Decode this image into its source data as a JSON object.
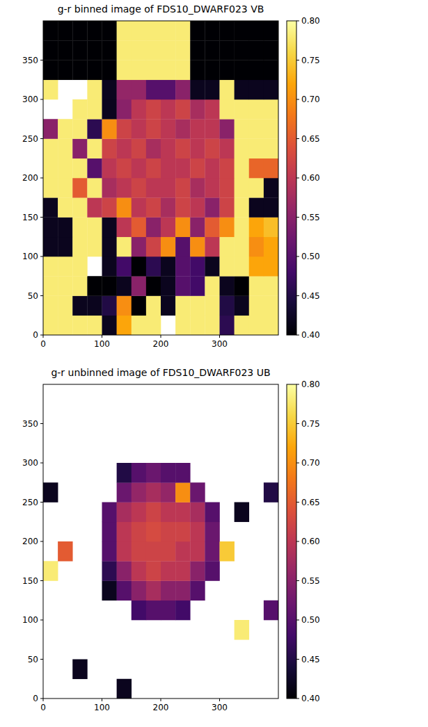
{
  "chart_data": [
    {
      "type": "heatmap",
      "title": "g-r binned image of FDS10_DWARF023 VB",
      "xlim": [
        0,
        400
      ],
      "ylim": [
        0,
        400
      ],
      "xticks": [
        0,
        100,
        200,
        300
      ],
      "yticks": [
        0,
        50,
        100,
        150,
        200,
        250,
        300,
        350
      ],
      "cells": [
        [
          0.78,
          0.78,
          0.78,
          0.78,
          0.42,
          0.72,
          0.78,
          0.78,
          null,
          0.78,
          0.78,
          0.78,
          0.46,
          0.78,
          0.78,
          0.78
        ],
        [
          0.78,
          0.78,
          0.42,
          0.42,
          0.45,
          0.7,
          0.4,
          0.78,
          0.42,
          0.78,
          0.78,
          0.78,
          0.45,
          0.42,
          0.78,
          0.78
        ],
        [
          0.78,
          0.78,
          0.78,
          0.4,
          0.4,
          0.42,
          0.55,
          0.4,
          0.42,
          0.5,
          0.48,
          0.78,
          0.42,
          0.4,
          0.78,
          0.78
        ],
        [
          0.78,
          0.78,
          0.78,
          null,
          0.42,
          0.48,
          0.4,
          0.46,
          0.42,
          0.5,
          0.48,
          0.42,
          0.78,
          0.78,
          0.72,
          0.72
        ],
        [
          0.42,
          0.42,
          0.78,
          0.78,
          0.42,
          0.78,
          0.55,
          0.62,
          0.7,
          0.5,
          0.7,
          0.6,
          0.78,
          0.78,
          0.7,
          0.72
        ],
        [
          0.42,
          0.42,
          0.78,
          0.78,
          0.42,
          0.6,
          0.65,
          0.55,
          0.6,
          0.7,
          0.55,
          0.65,
          0.7,
          0.78,
          0.72,
          0.74
        ],
        [
          0.42,
          0.78,
          0.78,
          0.6,
          0.62,
          0.7,
          0.6,
          0.62,
          0.58,
          0.62,
          0.6,
          0.55,
          0.62,
          0.78,
          0.42,
          0.42
        ],
        [
          0.78,
          0.78,
          0.65,
          0.78,
          0.58,
          0.6,
          0.62,
          0.6,
          0.6,
          0.62,
          0.58,
          0.6,
          0.62,
          0.78,
          0.78,
          0.42
        ],
        [
          0.78,
          0.78,
          0.78,
          0.5,
          0.6,
          0.62,
          0.6,
          0.62,
          0.6,
          0.6,
          0.62,
          0.6,
          0.62,
          0.78,
          0.66,
          0.66
        ],
        [
          0.78,
          0.78,
          0.55,
          0.78,
          0.62,
          0.6,
          0.62,
          0.58,
          0.6,
          0.62,
          0.6,
          0.62,
          0.6,
          0.78,
          0.78,
          0.78
        ],
        [
          0.55,
          0.78,
          0.78,
          0.46,
          0.7,
          0.62,
          0.6,
          0.62,
          0.6,
          0.58,
          0.6,
          0.6,
          0.55,
          0.78,
          0.78,
          0.78
        ],
        [
          null,
          null,
          0.78,
          0.78,
          0.42,
          0.55,
          0.6,
          0.62,
          0.6,
          0.62,
          0.58,
          0.6,
          0.78,
          0.78,
          0.78,
          0.78
        ],
        [
          0.78,
          null,
          null,
          0.78,
          0.42,
          0.56,
          0.56,
          0.5,
          0.5,
          0.55,
          0.42,
          0.42,
          0.78,
          0.42,
          0.42,
          0.42
        ],
        [
          0.4,
          0.4,
          0.4,
          0.4,
          0.4,
          0.78,
          0.78,
          0.78,
          0.78,
          0.78,
          0.4,
          0.4,
          0.4,
          0.4,
          0.4,
          0.4
        ],
        [
          0.4,
          0.4,
          0.4,
          0.4,
          0.4,
          0.78,
          0.78,
          0.78,
          0.78,
          0.78,
          0.4,
          0.4,
          0.4,
          0.4,
          0.4,
          0.4
        ],
        [
          0.4,
          0.4,
          0.4,
          0.4,
          0.4,
          0.78,
          0.78,
          0.78,
          0.78,
          0.78,
          0.4,
          0.4,
          0.4,
          0.4,
          0.4,
          0.4
        ]
      ],
      "colorbar": {
        "range": [
          0.4,
          0.8
        ],
        "ticks": [
          {
            "value": 0.4,
            "label": "0.40"
          },
          0.45,
          {
            "value": 0.5,
            "label": "0.50"
          },
          0.55,
          {
            "value": 0.6,
            "label": "0.60"
          },
          0.65,
          {
            "value": 0.7,
            "label": "0.70"
          },
          0.75,
          {
            "value": 0.8,
            "label": "0.80"
          }
        ]
      }
    },
    {
      "type": "heatmap",
      "title": "g-r unbinned image of FDS10_DWARF023 UB",
      "xlim": [
        0,
        400
      ],
      "ylim": [
        0,
        400
      ],
      "xticks": [
        0,
        100,
        200,
        300
      ],
      "yticks": [
        0,
        50,
        100,
        150,
        200,
        250,
        300,
        350
      ],
      "cells": [
        [
          null,
          null,
          null,
          null,
          null,
          0.42,
          null,
          null,
          null,
          null,
          null,
          null,
          null,
          null,
          null,
          null
        ],
        [
          null,
          null,
          0.42,
          null,
          null,
          null,
          null,
          null,
          null,
          null,
          null,
          null,
          null,
          null,
          null,
          null
        ],
        [
          null,
          null,
          null,
          null,
          null,
          null,
          null,
          null,
          null,
          null,
          null,
          null,
          null,
          null,
          null,
          null
        ],
        [
          null,
          null,
          null,
          null,
          null,
          null,
          null,
          null,
          null,
          null,
          null,
          null,
          null,
          0.78,
          null,
          null
        ],
        [
          null,
          null,
          null,
          null,
          null,
          null,
          0.48,
          0.5,
          0.5,
          0.48,
          null,
          null,
          null,
          null,
          null,
          0.5
        ],
        [
          null,
          null,
          null,
          null,
          0.42,
          0.5,
          0.55,
          0.58,
          0.55,
          0.55,
          0.5,
          null,
          null,
          null,
          null,
          null
        ],
        [
          0.78,
          null,
          null,
          null,
          0.46,
          0.55,
          0.6,
          0.62,
          0.6,
          0.6,
          0.55,
          0.5,
          null,
          null,
          null,
          null
        ],
        [
          null,
          0.65,
          null,
          null,
          0.5,
          0.6,
          0.62,
          0.62,
          0.62,
          0.6,
          0.6,
          0.52,
          0.75,
          null,
          null,
          null
        ],
        [
          null,
          null,
          null,
          null,
          0.5,
          0.6,
          0.62,
          0.63,
          0.62,
          0.62,
          0.6,
          0.52,
          null,
          null,
          null,
          null
        ],
        [
          null,
          null,
          null,
          null,
          0.5,
          0.58,
          0.6,
          0.62,
          0.6,
          0.6,
          0.58,
          0.5,
          null,
          0.42,
          null,
          null
        ],
        [
          0.42,
          null,
          null,
          null,
          null,
          0.52,
          0.56,
          0.58,
          0.56,
          0.7,
          0.52,
          null,
          null,
          null,
          null,
          0.45
        ],
        [
          null,
          null,
          null,
          null,
          null,
          0.45,
          0.5,
          0.52,
          0.5,
          0.5,
          null,
          null,
          null,
          null,
          null,
          null
        ],
        [
          null,
          null,
          null,
          null,
          null,
          null,
          null,
          null,
          null,
          null,
          null,
          null,
          null,
          null,
          null,
          null
        ],
        [
          null,
          null,
          null,
          null,
          null,
          null,
          null,
          null,
          null,
          null,
          null,
          null,
          null,
          null,
          null,
          null
        ],
        [
          null,
          null,
          null,
          null,
          null,
          null,
          null,
          null,
          null,
          null,
          null,
          null,
          null,
          null,
          null,
          null
        ],
        [
          null,
          null,
          null,
          null,
          null,
          null,
          null,
          null,
          null,
          null,
          null,
          null,
          null,
          null,
          null,
          null
        ]
      ],
      "colorbar": {
        "range": [
          0.4,
          0.8
        ],
        "ticks": [
          {
            "value": 0.4,
            "label": "0.40"
          },
          0.45,
          {
            "value": 0.5,
            "label": "0.50"
          },
          0.55,
          {
            "value": 0.6,
            "label": "0.60"
          },
          0.65,
          {
            "value": 0.7,
            "label": "0.70"
          },
          0.75,
          {
            "value": 0.8,
            "label": "0.80"
          }
        ]
      }
    }
  ]
}
